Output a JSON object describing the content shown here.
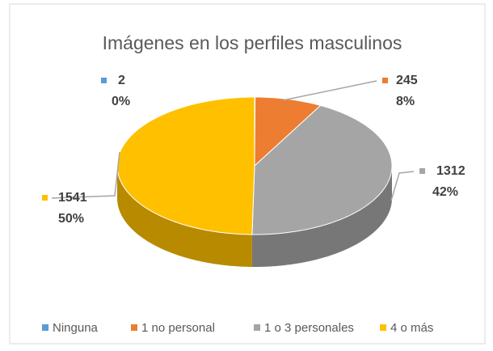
{
  "chart_data": {
    "type": "pie3d",
    "title": "Imágenes en los perfiles masculinos",
    "categories": [
      "Ninguna",
      "1 no personal",
      "1 o 3 personales",
      "4 o más"
    ],
    "values": [
      2,
      245,
      1312,
      1541
    ],
    "percentages": [
      0,
      8,
      42,
      50
    ],
    "percentage_labels": [
      "0%",
      "8%",
      "42%",
      "50%"
    ],
    "colors": [
      "#5b9bd5",
      "#ed7d31",
      "#a5a5a5",
      "#ffc000"
    ],
    "legend": "bottom"
  }
}
